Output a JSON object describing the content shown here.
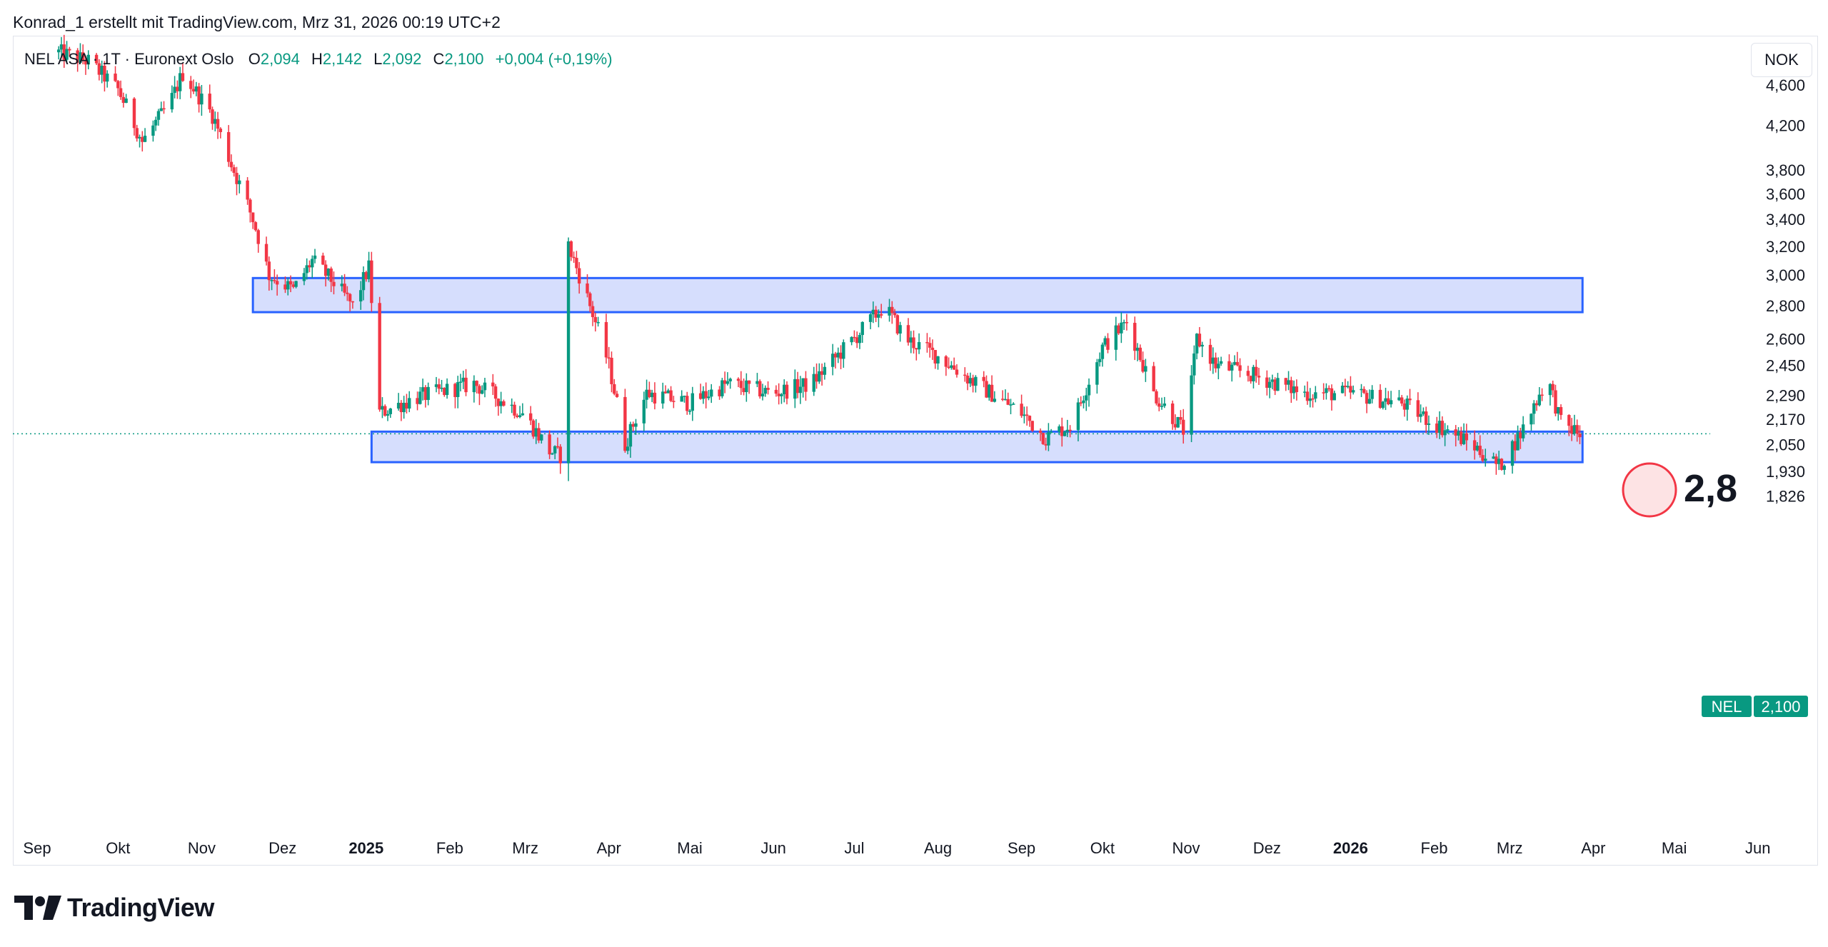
{
  "header": {
    "text": "Konrad_1 erstellt mit TradingView.com, Mrz 31, 2026 00:19 UTC+2"
  },
  "legend": {
    "symbol": "NEL ASA · 1T · Euronext Oslo",
    "o_label": "O",
    "o_value": "2,094",
    "h_label": "H",
    "h_value": "2,142",
    "l_label": "L",
    "l_value": "2,092",
    "c_label": "C",
    "c_value": "2,100",
    "change": "+0,004 (+0,19%)"
  },
  "currency": "NOK",
  "price_tag": {
    "ticker": "NEL",
    "value": "2,100"
  },
  "annotation": {
    "text": "2,8"
  },
  "footer": {
    "brand": "TradingView"
  },
  "colors": {
    "up": "#089981",
    "down": "#f23645",
    "zone_fill": "#d4dcfd",
    "zone_stroke": "#2962ff",
    "annotation_fill": "#fde3e4",
    "annotation_stroke": "#f23645"
  },
  "chart_data": {
    "type": "candlestick",
    "price_axis": {
      "scale": "log",
      "range": [
        1.78,
        5.0
      ],
      "ticks": [
        "4,600",
        "4,200",
        "3,800",
        "3,600",
        "3,400",
        "3,200",
        "3,000",
        "2,800",
        "2,600",
        "2,450",
        "2,290",
        "2,170",
        "2,050",
        "1,930",
        "1,826"
      ]
    },
    "time_axis": {
      "range": [
        "2024-09-01",
        "2026-06-15"
      ],
      "ticks": [
        {
          "date": "2024-09-01",
          "label": "Sep",
          "bold": false
        },
        {
          "date": "2024-10-01",
          "label": "Okt",
          "bold": false
        },
        {
          "date": "2024-11-01",
          "label": "Nov",
          "bold": false
        },
        {
          "date": "2024-12-01",
          "label": "Dez",
          "bold": false
        },
        {
          "date": "2025-01-01",
          "label": "2025",
          "bold": true
        },
        {
          "date": "2025-02-01",
          "label": "Feb",
          "bold": false
        },
        {
          "date": "2025-03-01",
          "label": "Mrz",
          "bold": false
        },
        {
          "date": "2025-04-01",
          "label": "Apr",
          "bold": false
        },
        {
          "date": "2025-05-01",
          "label": "Mai",
          "bold": false
        },
        {
          "date": "2025-06-01",
          "label": "Jun",
          "bold": false
        },
        {
          "date": "2025-07-01",
          "label": "Jul",
          "bold": false
        },
        {
          "date": "2025-08-01",
          "label": "Aug",
          "bold": false
        },
        {
          "date": "2025-09-01",
          "label": "Sep",
          "bold": false
        },
        {
          "date": "2025-10-01",
          "label": "Okt",
          "bold": false
        },
        {
          "date": "2025-11-01",
          "label": "Nov",
          "bold": false
        },
        {
          "date": "2025-12-01",
          "label": "Dez",
          "bold": false
        },
        {
          "date": "2026-01-01",
          "label": "2026",
          "bold": true
        },
        {
          "date": "2026-02-01",
          "label": "Feb",
          "bold": false
        },
        {
          "date": "2026-03-01",
          "label": "Mrz",
          "bold": false
        },
        {
          "date": "2026-04-01",
          "label": "Apr",
          "bold": false
        },
        {
          "date": "2026-05-01",
          "label": "Mai",
          "bold": false
        },
        {
          "date": "2026-06-01",
          "label": "Jun",
          "bold": false
        }
      ]
    },
    "last_price": 2.1,
    "zones": [
      {
        "start": "2024-11-20",
        "end": "2026-03-28",
        "low": 2.76,
        "high": 2.98
      },
      {
        "start": "2025-01-03",
        "end": "2026-03-28",
        "low": 1.97,
        "high": 2.11
      }
    ],
    "price_path": [
      {
        "date": "2024-09-09",
        "close": 4.95
      },
      {
        "date": "2024-09-20",
        "close": 4.85
      },
      {
        "date": "2024-10-01",
        "close": 4.55
      },
      {
        "date": "2024-10-10",
        "close": 4.05
      },
      {
        "date": "2024-10-20",
        "close": 4.4
      },
      {
        "date": "2024-10-25",
        "close": 4.72
      },
      {
        "date": "2024-11-05",
        "close": 4.3
      },
      {
        "date": "2024-11-12",
        "close": 3.85
      },
      {
        "date": "2024-11-20",
        "close": 3.4
      },
      {
        "date": "2024-11-26",
        "close": 3.0
      },
      {
        "date": "2024-12-05",
        "close": 2.9
      },
      {
        "date": "2024-12-12",
        "close": 3.1
      },
      {
        "date": "2024-12-20",
        "close": 2.95
      },
      {
        "date": "2024-12-27",
        "close": 2.8
      },
      {
        "date": "2025-01-02",
        "close": 3.05
      },
      {
        "date": "2025-01-06",
        "close": 2.2
      },
      {
        "date": "2025-01-20",
        "close": 2.28
      },
      {
        "date": "2025-02-10",
        "close": 2.35
      },
      {
        "date": "2025-02-28",
        "close": 2.2
      },
      {
        "date": "2025-03-10",
        "close": 2.02
      },
      {
        "date": "2025-03-14",
        "close": 2.0
      },
      {
        "date": "2025-03-17",
        "close": 3.2
      },
      {
        "date": "2025-03-24",
        "close": 2.85
      },
      {
        "date": "2025-04-01",
        "close": 2.45
      },
      {
        "date": "2025-04-07",
        "close": 2.05
      },
      {
        "date": "2025-04-15",
        "close": 2.3
      },
      {
        "date": "2025-05-01",
        "close": 2.25
      },
      {
        "date": "2025-05-15",
        "close": 2.35
      },
      {
        "date": "2025-06-01",
        "close": 2.3
      },
      {
        "date": "2025-06-15",
        "close": 2.35
      },
      {
        "date": "2025-07-01",
        "close": 2.6
      },
      {
        "date": "2025-07-12",
        "close": 2.8
      },
      {
        "date": "2025-07-20",
        "close": 2.6
      },
      {
        "date": "2025-08-01",
        "close": 2.5
      },
      {
        "date": "2025-08-15",
        "close": 2.35
      },
      {
        "date": "2025-09-01",
        "close": 2.2
      },
      {
        "date": "2025-09-10",
        "close": 2.08
      },
      {
        "date": "2025-09-20",
        "close": 2.15
      },
      {
        "date": "2025-10-01",
        "close": 2.55
      },
      {
        "date": "2025-10-10",
        "close": 2.7
      },
      {
        "date": "2025-10-20",
        "close": 2.3
      },
      {
        "date": "2025-11-01",
        "close": 2.1
      },
      {
        "date": "2025-11-05",
        "close": 2.6
      },
      {
        "date": "2025-11-12",
        "close": 2.45
      },
      {
        "date": "2025-11-25",
        "close": 2.4
      },
      {
        "date": "2025-12-15",
        "close": 2.3
      },
      {
        "date": "2026-01-01",
        "close": 2.3
      },
      {
        "date": "2026-01-20",
        "close": 2.25
      },
      {
        "date": "2026-02-01",
        "close": 2.15
      },
      {
        "date": "2026-02-15",
        "close": 2.05
      },
      {
        "date": "2026-02-25",
        "close": 1.95
      },
      {
        "date": "2026-03-05",
        "close": 2.1
      },
      {
        "date": "2026-03-15",
        "close": 2.38
      },
      {
        "date": "2026-03-20",
        "close": 2.15
      },
      {
        "date": "2026-03-27",
        "close": 2.1
      }
    ]
  }
}
